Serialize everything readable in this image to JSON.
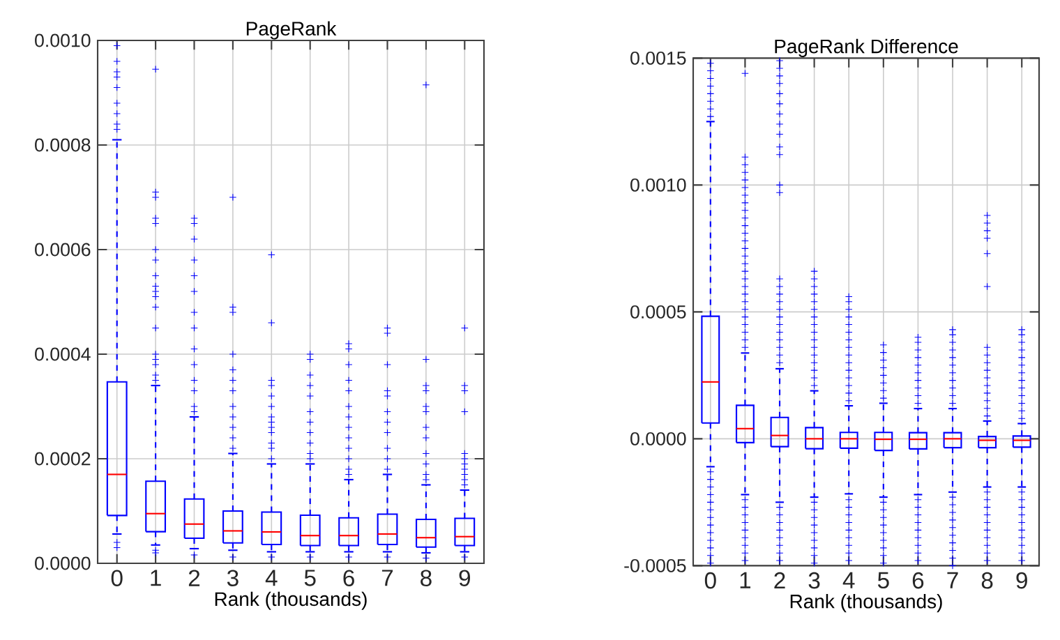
{
  "chart_data": [
    {
      "type": "box",
      "title": "PageRank",
      "xlabel": "Rank (thousands)",
      "categories": [
        "0",
        "1",
        "2",
        "3",
        "4",
        "5",
        "6",
        "7",
        "8",
        "9"
      ],
      "color": "#0000ff",
      "marker": "cross",
      "line_style": "dashed",
      "grid": true,
      "ylim": [
        0,
        0.001
      ],
      "yticks": [
        {
          "value": 0,
          "label": "0.0000"
        },
        {
          "value": 0.0002,
          "label": "0.0002"
        },
        {
          "value": 0.0004,
          "label": "0.0004"
        },
        {
          "value": 0.0006,
          "label": "0.0006"
        },
        {
          "value": 0.0008,
          "label": "0.0008"
        },
        {
          "value": 0.001,
          "label": "0.0010"
        }
      ],
      "boxes": [
        {
          "low": 5.6e-05,
          "q1": 9.15e-05,
          "median": 0.00017,
          "q3": 0.000347,
          "high": 0.00081,
          "outliers": [
            0.00083,
            0.00084,
            0.00086,
            0.00088,
            0.00091,
            0.00093,
            0.00094,
            0.00096,
            0.00099,
            4e-05,
            3e-05
          ]
        },
        {
          "low": 3.5e-05,
          "q1": 6.05e-05,
          "median": 9.5e-05,
          "q3": 0.000157,
          "high": 0.00034,
          "outliers": [
            0.000945,
            0.00071,
            0.0007,
            0.00066,
            0.00065,
            0.0006,
            0.00058,
            0.00055,
            0.00053,
            0.00052,
            0.00051,
            0.00049,
            0.00045,
            0.0004,
            0.00039,
            0.00038,
            0.00036,
            0.00035,
            2.5e-05,
            2e-05
          ]
        },
        {
          "low": 2.8e-05,
          "q1": 4.8e-05,
          "median": 7.5e-05,
          "q3": 0.000123,
          "high": 0.00028,
          "outliers": [
            0.00066,
            0.00065,
            0.00062,
            0.00058,
            0.00055,
            0.00052,
            0.00048,
            0.00045,
            0.00041,
            0.00038,
            0.00035,
            0.00033,
            0.0003,
            0.00029,
            1.6e-05
          ]
        },
        {
          "low": 2.5e-05,
          "q1": 3.9e-05,
          "median": 6.2e-05,
          "q3": 0.0001,
          "high": 0.00021,
          "outliers": [
            0.0007,
            0.00049,
            0.00048,
            0.0004,
            0.00037,
            0.00035,
            0.00033,
            0.0003,
            0.00028,
            0.00026,
            0.00024,
            0.00022,
            1.2e-05
          ]
        },
        {
          "low": 2.2e-05,
          "q1": 3.6e-05,
          "median": 6e-05,
          "q3": 9.8e-05,
          "high": 0.00019,
          "outliers": [
            0.00059,
            0.00046,
            0.00035,
            0.00034,
            0.00032,
            0.0003,
            0.00028,
            0.00027,
            0.00026,
            0.00025,
            0.00023,
            0.00022,
            0.0002,
            1.2e-05
          ]
        },
        {
          "low": 2.2e-05,
          "q1": 3.4e-05,
          "median": 5.3e-05,
          "q3": 9.2e-05,
          "high": 0.00019,
          "outliers": [
            0.0004,
            0.00039,
            0.00036,
            0.00034,
            0.00032,
            0.00029,
            0.00027,
            0.00025,
            0.00023,
            0.00021,
            0.0002,
            1.2e-05
          ]
        },
        {
          "low": 2.2e-05,
          "q1": 3.4e-05,
          "median": 5.3e-05,
          "q3": 8.7e-05,
          "high": 0.00016,
          "outliers": [
            0.00042,
            0.00041,
            0.00038,
            0.00035,
            0.00033,
            0.0003,
            0.00028,
            0.00026,
            0.00024,
            0.00022,
            0.0002,
            0.00018,
            0.00017,
            1.2e-05
          ]
        },
        {
          "low": 2.2e-05,
          "q1": 3.6e-05,
          "median": 5.6e-05,
          "q3": 9.4e-05,
          "high": 0.00017,
          "outliers": [
            0.00045,
            0.00044,
            0.00038,
            0.00033,
            0.00032,
            0.00029,
            0.00027,
            0.00025,
            0.00022,
            0.0002,
            0.00018,
            1.2e-05
          ]
        },
        {
          "low": 2e-05,
          "q1": 3.1e-05,
          "median": 4.9e-05,
          "q3": 8.4e-05,
          "high": 0.00015,
          "outliers": [
            0.000915,
            0.00039,
            0.00034,
            0.00033,
            0.0003,
            0.00029,
            0.00026,
            0.00024,
            0.00021,
            0.00019,
            0.00017,
            0.00016,
            1e-05
          ]
        },
        {
          "low": 2.2e-05,
          "q1": 3.4e-05,
          "median": 5.1e-05,
          "q3": 8.6e-05,
          "high": 0.00014,
          "outliers": [
            0.00045,
            0.00034,
            0.00033,
            0.00029,
            0.00021,
            0.0002,
            0.00019,
            0.00018,
            0.00017,
            0.00016,
            0.00015,
            1.2e-05
          ]
        }
      ]
    },
    {
      "type": "box",
      "title": "PageRank Difference",
      "xlabel": "Rank (thousands)",
      "categories": [
        "0",
        "1",
        "2",
        "3",
        "4",
        "5",
        "6",
        "7",
        "8",
        "9"
      ],
      "color": "#0000ff",
      "marker": "cross",
      "line_style": "dashed",
      "grid": true,
      "ylim": [
        -0.0005,
        0.0015
      ],
      "yticks": [
        {
          "value": -0.0005,
          "label": "-0.0005"
        },
        {
          "value": 0,
          "label": "0.0000"
        },
        {
          "value": 0.0005,
          "label": "0.0005"
        },
        {
          "value": 0.001,
          "label": "0.0010"
        },
        {
          "value": 0.0015,
          "label": "0.0015"
        }
      ],
      "boxes": [
        {
          "low": -0.00011,
          "q1": 6.2e-05,
          "median": 0.000224,
          "q3": 0.000483,
          "high": 0.00125,
          "outliers": [
            0.00127,
            0.0013,
            0.00133,
            0.00136,
            0.00139,
            0.00142,
            0.00145,
            0.00148,
            -0.00013,
            -0.00016,
            -0.00019,
            -0.00022,
            -0.00025,
            -0.00028,
            -0.00031,
            -0.00034,
            -0.00037,
            -0.0004,
            -0.00043,
            -0.00046,
            -0.00049
          ]
        },
        {
          "low": -0.00022,
          "q1": -1.5e-05,
          "median": 4e-05,
          "q3": 0.000132,
          "high": 0.000338,
          "outliers": [
            0.00036,
            0.00039,
            0.00042,
            0.00045,
            0.00048,
            0.00051,
            0.00054,
            0.00057,
            0.0006,
            0.00063,
            0.00066,
            0.00069,
            0.00072,
            0.00075,
            0.00078,
            0.00081,
            0.00084,
            0.00087,
            0.0009,
            0.00093,
            0.00096,
            0.00099,
            0.00102,
            0.00105,
            0.00108,
            0.00111,
            0.00144,
            -0.00024,
            -0.00027,
            -0.0003,
            -0.00033,
            -0.00036,
            -0.00039,
            -0.00042,
            -0.00045,
            -0.00048
          ]
        },
        {
          "low": -0.00025,
          "q1": -3.1e-05,
          "median": 1.3e-05,
          "q3": 8.4e-05,
          "high": 0.000276,
          "outliers": [
            0.0003,
            0.00033,
            0.00036,
            0.00039,
            0.00042,
            0.00045,
            0.00048,
            0.00051,
            0.00054,
            0.00057,
            0.0006,
            0.00063,
            0.00097,
            0.001,
            0.00112,
            0.00115,
            0.0012,
            0.00124,
            0.00128,
            0.00132,
            0.00136,
            0.0014,
            0.00143,
            0.00146,
            0.00149,
            -0.00027,
            -0.0003,
            -0.00033,
            -0.00036,
            -0.00039,
            -0.00042,
            -0.00045,
            -0.00048
          ]
        },
        {
          "low": -0.00023,
          "q1": -3.9e-05,
          "median": 0,
          "q3": 4.4e-05,
          "high": 0.000189,
          "outliers": [
            0.00021,
            0.00024,
            0.00027,
            0.0003,
            0.00033,
            0.00036,
            0.00039,
            0.00042,
            0.00045,
            0.00048,
            0.00051,
            0.00054,
            0.00057,
            0.0006,
            0.00063,
            0.00066,
            -0.00025,
            -0.00028,
            -0.00031,
            -0.00034,
            -0.00037,
            -0.0004,
            -0.00043,
            -0.00046,
            -0.00049
          ]
        },
        {
          "low": -0.000217,
          "q1": -3.7e-05,
          "median": 0,
          "q3": 2.5e-05,
          "high": 0.00013,
          "outliers": [
            0.00015,
            0.00018,
            0.00021,
            0.00024,
            0.00027,
            0.0003,
            0.00033,
            0.00036,
            0.00039,
            0.00042,
            0.00045,
            0.00048,
            0.00051,
            0.00054,
            0.00056,
            -0.00024,
            -0.00027,
            -0.0003,
            -0.00033,
            -0.00036,
            -0.00039,
            -0.00042,
            -0.00045,
            -0.00048
          ]
        },
        {
          "low": -0.00023,
          "q1": -4.6e-05,
          "median": -2e-06,
          "q3": 2.5e-05,
          "high": 0.00014,
          "outliers": [
            0.00016,
            0.00019,
            0.00022,
            0.00025,
            0.00028,
            0.00031,
            0.00034,
            0.00037,
            -0.00025,
            -0.00028,
            -0.00031,
            -0.00034,
            -0.00037,
            -0.0004,
            -0.00043,
            -0.00046,
            -0.00049
          ]
        },
        {
          "low": -0.00022,
          "q1": -4e-05,
          "median": -2e-06,
          "q3": 2.4e-05,
          "high": 0.000119,
          "outliers": [
            0.00014,
            0.00017,
            0.0002,
            0.00023,
            0.00026,
            0.00029,
            0.00032,
            0.00035,
            0.00038,
            0.0004,
            -0.00024,
            -0.00027,
            -0.0003,
            -0.00033,
            -0.00036,
            -0.00039,
            -0.00042,
            -0.00045,
            -0.00048
          ]
        },
        {
          "low": -0.00021,
          "q1": -3.5e-05,
          "median": 0,
          "q3": 2.4e-05,
          "high": 0.000119,
          "outliers": [
            0.00014,
            0.00017,
            0.0002,
            0.00023,
            0.00026,
            0.00029,
            0.00032,
            0.00035,
            0.00038,
            0.00041,
            0.00043,
            -0.00023,
            -0.00026,
            -0.00029,
            -0.00032,
            -0.00035,
            -0.00038,
            -0.00041,
            -0.00044,
            -0.00047,
            -0.0005
          ]
        },
        {
          "low": -0.00019,
          "q1": -3.5e-05,
          "median": -6e-06,
          "q3": 9e-06,
          "high": 7e-05,
          "outliers": [
            9e-05,
            0.00012,
            0.00015,
            0.00018,
            0.00021,
            0.00024,
            0.00027,
            0.0003,
            0.00033,
            0.00036,
            0.0006,
            0.00073,
            0.00079,
            0.00082,
            0.00085,
            0.00088,
            -0.00021,
            -0.00024,
            -0.00027,
            -0.0003,
            -0.00033,
            -0.00036,
            -0.00039,
            -0.00042,
            -0.00045,
            -0.00048
          ]
        },
        {
          "low": -0.00019,
          "q1": -3.3e-05,
          "median": -6e-06,
          "q3": 1.1e-05,
          "high": 6e-05,
          "outliers": [
            8e-05,
            0.00011,
            0.00014,
            0.00017,
            0.0002,
            0.00023,
            0.00026,
            0.00029,
            0.00032,
            0.00035,
            0.00038,
            0.00041,
            0.00043,
            -0.00021,
            -0.00024,
            -0.00027,
            -0.0003,
            -0.00033,
            -0.00036,
            -0.00039,
            -0.00042,
            -0.00045,
            -0.00048
          ]
        }
      ]
    }
  ]
}
